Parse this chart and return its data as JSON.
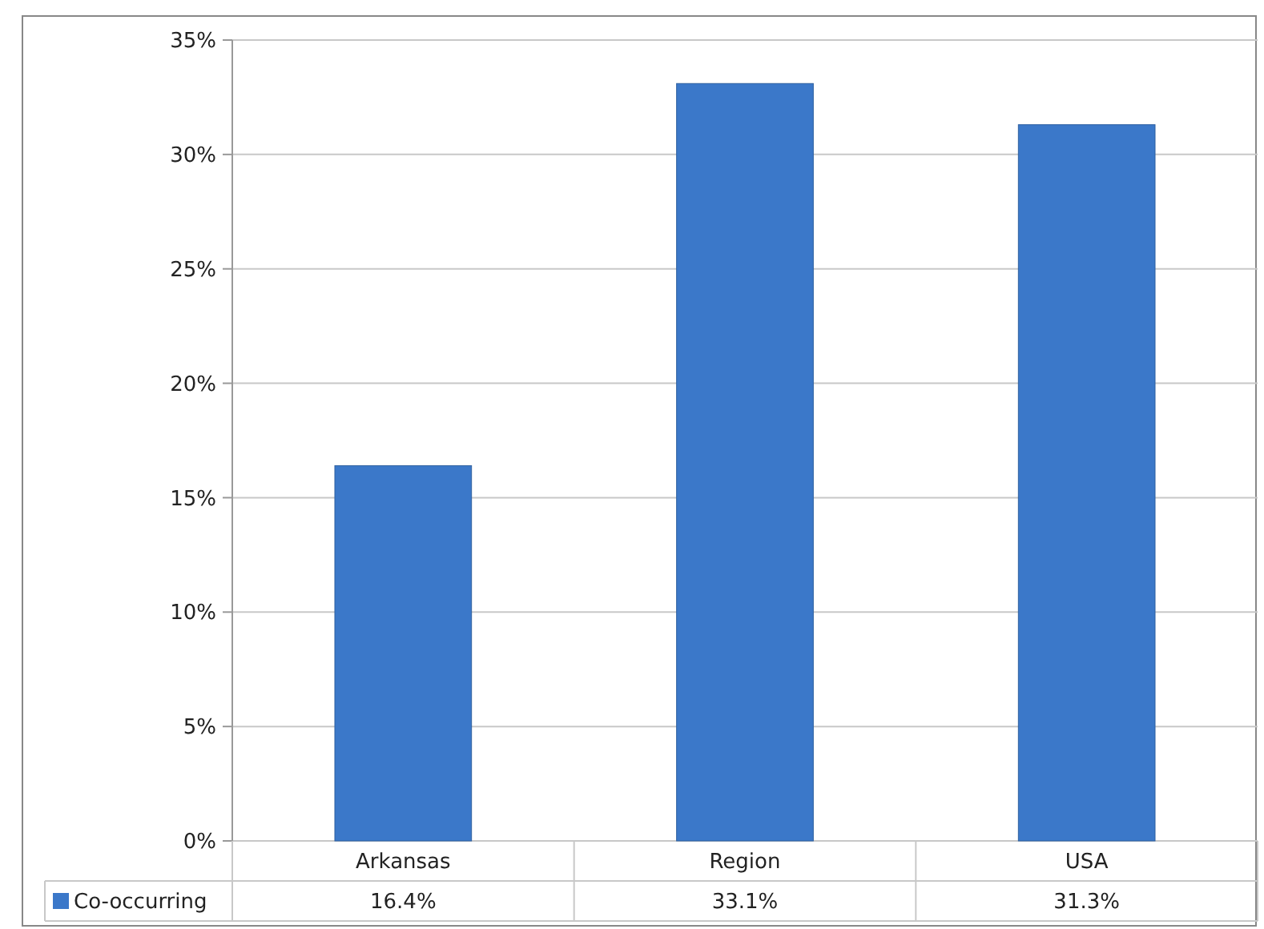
{
  "chart_data": {
    "type": "bar",
    "categories": [
      "Arkansas",
      "Region",
      "USA"
    ],
    "series": [
      {
        "name": "Co-occurring",
        "color": "#3b78c9",
        "values": [
          16.4,
          33.1,
          31.3
        ]
      }
    ],
    "value_labels": [
      "16.4%",
      "33.1%",
      "31.3%"
    ],
    "ylim": [
      0,
      35
    ],
    "yticks": [
      {
        "value": 0,
        "label": "0%"
      },
      {
        "value": 5,
        "label": "5%"
      },
      {
        "value": 10,
        "label": "10%"
      },
      {
        "value": 15,
        "label": "15%"
      },
      {
        "value": 20,
        "label": "20%"
      },
      {
        "value": 25,
        "label": "25%"
      },
      {
        "value": 30,
        "label": "30%"
      },
      {
        "value": 35,
        "label": "35%"
      }
    ],
    "grid": "y",
    "legend": "bottom"
  }
}
